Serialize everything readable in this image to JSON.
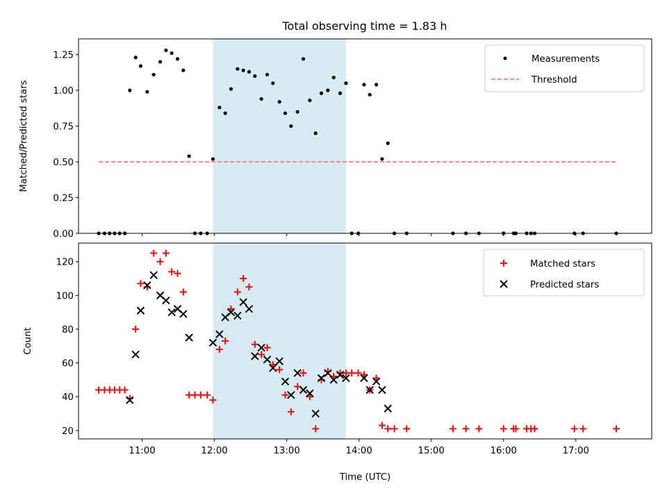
{
  "chart_data": [
    {
      "type": "scatter",
      "title": "Total observing time = 1.83 h",
      "xlabel": "",
      "ylabel": "Matched/Predicted stars",
      "xlim": [
        10.12,
        18.05
      ],
      "ylim": [
        0,
        1.36
      ],
      "yticks": [
        "0.00",
        "0.25",
        "0.50",
        "0.75",
        "1.00",
        "1.25"
      ],
      "ytick_values": [
        0,
        0.25,
        0.5,
        0.75,
        1.0,
        1.25
      ],
      "shaded_region": {
        "x0": 11.98,
        "x1": 13.82,
        "color": "#add8e6"
      },
      "legend": {
        "position": "upper right",
        "entries": [
          "Measurements",
          "Threshold"
        ]
      },
      "series": [
        {
          "name": "Measurements",
          "marker": "dot",
          "color": "#000000",
          "points": [
            [
              10.4,
              0
            ],
            [
              10.48,
              0
            ],
            [
              10.55,
              0
            ],
            [
              10.62,
              0
            ],
            [
              10.69,
              0
            ],
            [
              10.76,
              0
            ],
            [
              10.83,
              1.0
            ],
            [
              10.91,
              1.23
            ],
            [
              10.98,
              1.17
            ],
            [
              11.07,
              0.99
            ],
            [
              11.16,
              1.11
            ],
            [
              11.25,
              1.2
            ],
            [
              11.33,
              1.28
            ],
            [
              11.41,
              1.26
            ],
            [
              11.49,
              1.22
            ],
            [
              11.57,
              1.14
            ],
            [
              11.65,
              0.54
            ],
            [
              11.73,
              0
            ],
            [
              11.81,
              0
            ],
            [
              11.9,
              0
            ],
            [
              11.98,
              0.52
            ],
            [
              12.07,
              0.88
            ],
            [
              12.15,
              0.84
            ],
            [
              12.23,
              1.01
            ],
            [
              12.32,
              1.15
            ],
            [
              12.4,
              1.14
            ],
            [
              12.48,
              1.13
            ],
            [
              12.56,
              1.1
            ],
            [
              12.65,
              0.94
            ],
            [
              12.73,
              1.11
            ],
            [
              12.81,
              1.05
            ],
            [
              12.9,
              0.92
            ],
            [
              12.98,
              0.84
            ],
            [
              13.06,
              0.75
            ],
            [
              13.15,
              0.85
            ],
            [
              13.23,
              1.22
            ],
            [
              13.32,
              0.93
            ],
            [
              13.4,
              0.7
            ],
            [
              13.48,
              0.98
            ],
            [
              13.57,
              1.0
            ],
            [
              13.65,
              1.09
            ],
            [
              13.74,
              0.98
            ],
            [
              13.82,
              1.05
            ],
            [
              13.9,
              0
            ],
            [
              13.99,
              0
            ],
            [
              14.07,
              1.04
            ],
            [
              14.15,
              0.97
            ],
            [
              14.24,
              1.04
            ],
            [
              14.32,
              0.52
            ],
            [
              14.4,
              0.63
            ],
            [
              14.49,
              0
            ],
            [
              14.66,
              0
            ],
            [
              15.3,
              0
            ],
            [
              15.48,
              0
            ],
            [
              15.66,
              0
            ],
            [
              16.0,
              0
            ],
            [
              16.14,
              0
            ],
            [
              16.17,
              0
            ],
            [
              16.32,
              0
            ],
            [
              16.38,
              0
            ],
            [
              16.43,
              0
            ],
            [
              16.98,
              0
            ],
            [
              17.1,
              0
            ],
            [
              17.56,
              0
            ]
          ]
        },
        {
          "name": "Threshold",
          "type": "line",
          "style": "dashed",
          "color": "#ff7f7f",
          "points": [
            [
              10.4,
              0.5
            ],
            [
              17.56,
              0.5
            ]
          ]
        }
      ]
    },
    {
      "type": "scatter",
      "title": "",
      "xlabel": "Time (UTC)",
      "ylabel": "Count",
      "xlim": [
        10.12,
        18.05
      ],
      "ylim": [
        15,
        131
      ],
      "xticks": [
        "11:00",
        "12:00",
        "13:00",
        "14:00",
        "15:00",
        "16:00",
        "17:00"
      ],
      "xtick_values": [
        11,
        12,
        13,
        14,
        15,
        16,
        17
      ],
      "yticks": [
        "20",
        "40",
        "60",
        "80",
        "100",
        "120"
      ],
      "ytick_values": [
        20,
        40,
        60,
        80,
        100,
        120
      ],
      "shaded_region": {
        "x0": 11.98,
        "x1": 13.82,
        "color": "#add8e6"
      },
      "legend": {
        "position": "upper right",
        "entries": [
          "Matched stars",
          "Predicted stars"
        ]
      },
      "series": [
        {
          "name": "Matched stars",
          "marker": "plus",
          "color": "#ff0000",
          "points": [
            [
              10.4,
              44
            ],
            [
              10.48,
              44
            ],
            [
              10.55,
              44
            ],
            [
              10.62,
              44
            ],
            [
              10.69,
              44
            ],
            [
              10.76,
              44
            ],
            [
              10.83,
              39
            ],
            [
              10.91,
              80
            ],
            [
              10.98,
              107
            ],
            [
              11.07,
              105
            ],
            [
              11.16,
              125
            ],
            [
              11.25,
              120
            ],
            [
              11.33,
              125
            ],
            [
              11.41,
              114
            ],
            [
              11.49,
              113
            ],
            [
              11.57,
              102
            ],
            [
              11.65,
              41
            ],
            [
              11.73,
              41
            ],
            [
              11.81,
              41
            ],
            [
              11.9,
              41
            ],
            [
              11.98,
              38
            ],
            [
              12.07,
              68
            ],
            [
              12.15,
              73
            ],
            [
              12.23,
              92
            ],
            [
              12.32,
              102
            ],
            [
              12.4,
              110
            ],
            [
              12.48,
              105
            ],
            [
              12.56,
              71
            ],
            [
              12.65,
              65
            ],
            [
              12.73,
              69
            ],
            [
              12.81,
              59
            ],
            [
              12.9,
              56
            ],
            [
              12.98,
              41
            ],
            [
              13.06,
              31
            ],
            [
              13.15,
              46
            ],
            [
              13.23,
              54
            ],
            [
              13.32,
              40
            ],
            [
              13.4,
              21
            ],
            [
              13.48,
              50
            ],
            [
              13.57,
              55
            ],
            [
              13.65,
              52
            ],
            [
              13.74,
              54
            ],
            [
              13.82,
              54
            ],
            [
              13.9,
              54
            ],
            [
              13.99,
              54
            ],
            [
              14.07,
              53
            ],
            [
              14.15,
              44
            ],
            [
              14.24,
              51
            ],
            [
              14.32,
              23
            ],
            [
              14.4,
              21
            ],
            [
              14.49,
              21
            ],
            [
              14.66,
              21
            ],
            [
              15.3,
              21
            ],
            [
              15.48,
              21
            ],
            [
              15.66,
              21
            ],
            [
              16.0,
              21
            ],
            [
              16.14,
              21
            ],
            [
              16.17,
              21
            ],
            [
              16.32,
              21
            ],
            [
              16.38,
              21
            ],
            [
              16.43,
              21
            ],
            [
              16.98,
              21
            ],
            [
              17.1,
              21
            ],
            [
              17.56,
              21
            ]
          ]
        },
        {
          "name": "Predicted stars",
          "marker": "x",
          "color": "#000000",
          "points": [
            [
              10.83,
              38
            ],
            [
              10.91,
              65
            ],
            [
              10.98,
              91
            ],
            [
              11.07,
              106
            ],
            [
              11.16,
              112
            ],
            [
              11.25,
              100
            ],
            [
              11.33,
              97
            ],
            [
              11.41,
              90
            ],
            [
              11.49,
              92
            ],
            [
              11.57,
              89
            ],
            [
              11.65,
              75
            ],
            [
              11.98,
              72
            ],
            [
              12.07,
              77
            ],
            [
              12.15,
              87
            ],
            [
              12.23,
              90
            ],
            [
              12.32,
              88
            ],
            [
              12.4,
              96
            ],
            [
              12.48,
              92
            ],
            [
              12.56,
              64
            ],
            [
              12.65,
              69
            ],
            [
              12.73,
              62
            ],
            [
              12.81,
              57
            ],
            [
              12.9,
              61
            ],
            [
              12.98,
              49
            ],
            [
              13.06,
              41
            ],
            [
              13.15,
              54
            ],
            [
              13.23,
              44
            ],
            [
              13.32,
              42
            ],
            [
              13.4,
              30
            ],
            [
              13.48,
              51
            ],
            [
              13.57,
              54
            ],
            [
              13.65,
              50
            ],
            [
              13.74,
              53
            ],
            [
              13.82,
              51
            ],
            [
              14.07,
              51
            ],
            [
              14.15,
              44
            ],
            [
              14.24,
              49
            ],
            [
              14.32,
              44
            ],
            [
              14.4,
              33
            ]
          ]
        }
      ]
    }
  ]
}
